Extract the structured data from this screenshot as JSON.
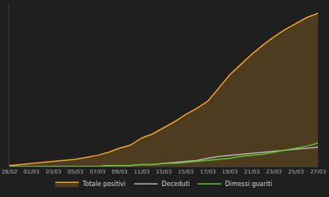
{
  "chart_data": {
    "type": "line",
    "categories": [
      "28/02",
      null,
      "01/03",
      null,
      "03/03",
      null,
      "05/03",
      null,
      "07/03",
      null,
      "09/03",
      null,
      "11/03",
      null,
      "13/03",
      null,
      "15/03",
      null,
      "17/03",
      null,
      "19/03",
      null,
      "21/03",
      null,
      "23/03",
      null,
      "25/03",
      null,
      "27/03"
    ],
    "series": [
      {
        "name": "Totale positivi",
        "color": "#f5a623",
        "type": "area",
        "values": [
          1,
          2,
          3,
          4,
          5,
          6,
          7,
          9,
          11,
          14,
          18,
          21,
          28,
          32,
          38,
          44,
          51,
          57,
          64,
          77,
          90,
          100,
          110,
          119,
          127,
          134,
          140,
          146,
          150
        ]
      },
      {
        "name": "Deceduti",
        "color": "#b5b5b5",
        "type": "line",
        "values": [
          0,
          0,
          0,
          0,
          0,
          0,
          0,
          0,
          0,
          1,
          1,
          1,
          2,
          2,
          3,
          4,
          5,
          6,
          8,
          10,
          11,
          12,
          13,
          14,
          15,
          16,
          17,
          18,
          19
        ]
      },
      {
        "name": "Dimessi guariti",
        "color": "#5ec42a",
        "type": "line",
        "values": [
          0,
          0,
          0,
          0,
          0,
          0,
          0,
          0,
          0,
          1,
          1,
          1,
          2,
          2,
          3,
          3,
          4,
          5,
          6,
          7,
          8,
          10,
          11,
          12,
          14,
          16,
          18,
          20,
          23
        ]
      }
    ],
    "ylim": [
      0,
      160
    ],
    "grid": false,
    "legend": "bottom",
    "tick_labels": "x"
  }
}
